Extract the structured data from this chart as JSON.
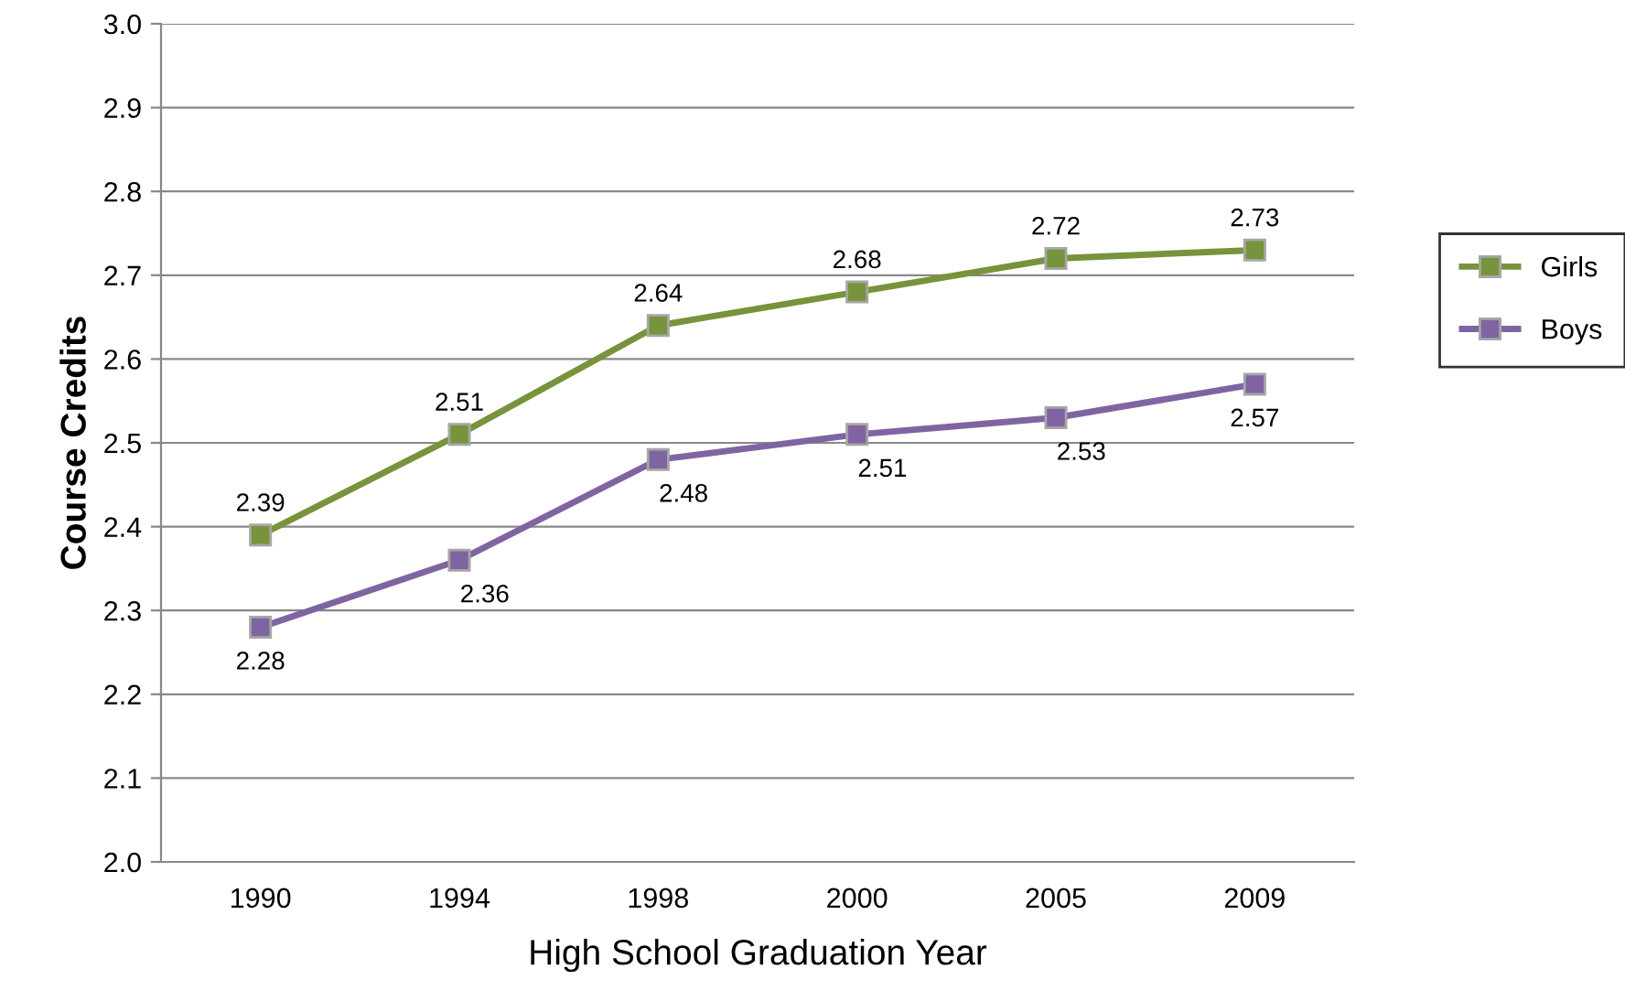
{
  "chart_data": {
    "type": "line",
    "xlabel": "High School Graduation Year",
    "ylabel": "Course Credits",
    "categories": [
      "1990",
      "1994",
      "1998",
      "2000",
      "2005",
      "2009"
    ],
    "series": [
      {
        "name": "Girls",
        "color": "#77933c",
        "values": [
          2.39,
          2.51,
          2.64,
          2.68,
          2.72,
          2.73
        ]
      },
      {
        "name": "Boys",
        "color": "#8064a2",
        "values": [
          2.28,
          2.36,
          2.48,
          2.51,
          2.53,
          2.57
        ]
      }
    ],
    "ylim": [
      2.0,
      3.0
    ],
    "yticks": [
      "2.0",
      "2.1",
      "2.2",
      "2.3",
      "2.4",
      "2.5",
      "2.6",
      "2.7",
      "2.8",
      "2.9",
      "3.0"
    ],
    "grid": "y",
    "legend": "right",
    "marker": "square",
    "line_style": "solid",
    "data_labels": true
  }
}
